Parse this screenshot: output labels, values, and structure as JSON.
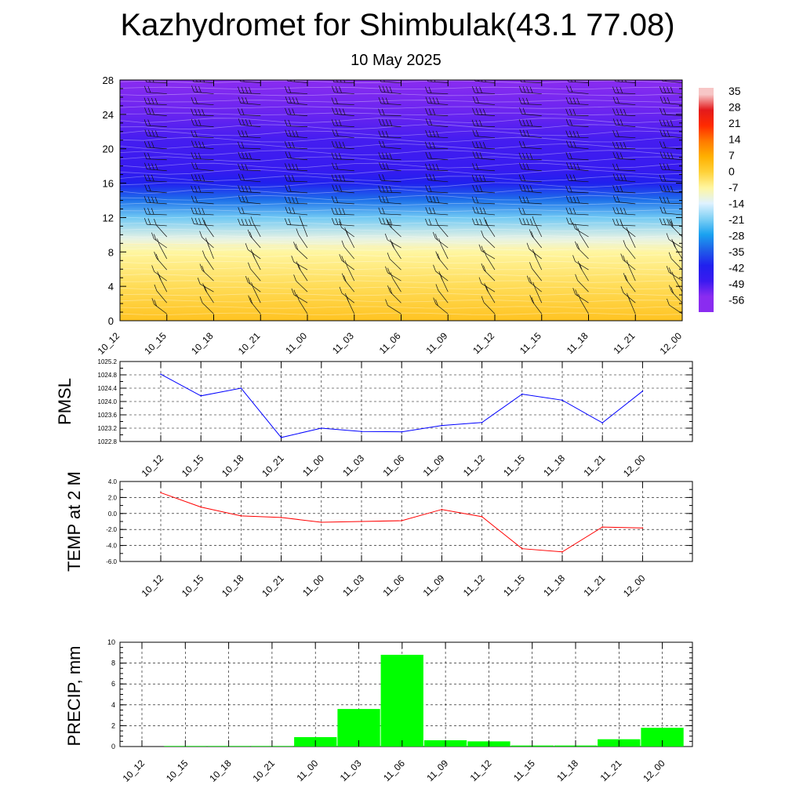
{
  "header": {
    "title": "Kazhydromet for Shimbulak(43.1 77.08)",
    "subtitle": "10 May 2025"
  },
  "chart_data": [
    {
      "type": "heatmap",
      "name": "temperature-cross-section",
      "x": [
        "10_12",
        "10_15",
        "10_18",
        "10_21",
        "11_00",
        "11_03",
        "11_06",
        "11_09",
        "11_12",
        "11_15",
        "11_18",
        "11_21",
        "12_00"
      ],
      "y_ticks": [
        0,
        4,
        8,
        12,
        16,
        20,
        24,
        28
      ],
      "ylim": [
        0,
        28
      ],
      "colorbar_ticks": [
        "35",
        "28",
        "21",
        "14",
        "7",
        "0",
        "-7",
        "-14",
        "-21",
        "-28",
        "-35",
        "-42",
        "-49",
        "-56"
      ],
      "colorbar_stops": [
        {
          "value": 35,
          "color": "#f7c6c6"
        },
        {
          "value": 28,
          "color": "#e31a1c"
        },
        {
          "value": 21,
          "color": "#ff2a00"
        },
        {
          "value": 14,
          "color": "#ff7a00"
        },
        {
          "value": 7,
          "color": "#ffb000"
        },
        {
          "value": 0,
          "color": "#ffd23a"
        },
        {
          "value": -7,
          "color": "#fff6a0"
        },
        {
          "value": -14,
          "color": "#dff2ff"
        },
        {
          "value": -21,
          "color": "#7fd0f5"
        },
        {
          "value": -28,
          "color": "#1aa2f0"
        },
        {
          "value": -35,
          "color": "#1f5fe8"
        },
        {
          "value": -42,
          "color": "#2020ee"
        },
        {
          "value": -49,
          "color": "#3a1af0"
        },
        {
          "value": -56,
          "color": "#8a2cf0"
        }
      ],
      "temperature_profile": [
        {
          "height": 0,
          "value": 3
        },
        {
          "height": 4,
          "value": -2
        },
        {
          "height": 8,
          "value": -7
        },
        {
          "height": 9.5,
          "value": -12
        },
        {
          "height": 12,
          "value": -22
        },
        {
          "height": 14,
          "value": -33
        },
        {
          "height": 16,
          "value": -42
        },
        {
          "height": 17.5,
          "value": -48
        },
        {
          "height": 21,
          "value": -50
        },
        {
          "height": 24,
          "value": -53
        },
        {
          "height": 28,
          "value": -56
        }
      ],
      "freezing_level": [
        8.9,
        8.9,
        8.8,
        8.8,
        8.7,
        8.7,
        8.6,
        8.5,
        8.5,
        8.4,
        8.3,
        8.2,
        8.0
      ]
    },
    {
      "type": "line",
      "name": "pmsl",
      "ylabel": "PMSL",
      "x": [
        "10_12",
        "10_15",
        "10_18",
        "10_21",
        "11_00",
        "11_03",
        "11_06",
        "11_09",
        "11_12",
        "11_15",
        "11_18",
        "11_21",
        "12_00"
      ],
      "values": [
        1024.82,
        1024.17,
        1024.4,
        1022.92,
        1023.2,
        1023.1,
        1023.09,
        1023.28,
        1023.37,
        1024.22,
        1024.04,
        1023.36,
        1024.31
      ],
      "ylim": [
        1022.8,
        1025.2
      ],
      "y_ticks": [
        "1022.8",
        "1023.2",
        "1023.6",
        "1024.0",
        "1024.4",
        "1024.8",
        "1025.2"
      ],
      "color": "#0000ff"
    },
    {
      "type": "line",
      "name": "temp-2m",
      "ylabel": "TEMP at 2 M",
      "x": [
        "10_12",
        "10_15",
        "10_18",
        "10_21",
        "11_00",
        "11_03",
        "11_06",
        "11_09",
        "11_12",
        "11_15",
        "11_18",
        "11_21",
        "12_00"
      ],
      "values": [
        2.6,
        0.8,
        -0.3,
        -0.5,
        -1.1,
        -1.0,
        -0.9,
        0.5,
        -0.4,
        -4.4,
        -4.8,
        -1.7,
        -1.8
      ],
      "ylim": [
        -6,
        4
      ],
      "y_ticks": [
        "-6.0",
        "-4.0",
        "-2.0",
        "0.0",
        "2.0",
        "4.0"
      ],
      "color": "#ff0000"
    },
    {
      "type": "bar",
      "name": "precip",
      "ylabel": "PRECIP, mm",
      "x": [
        "10_12",
        "10_15",
        "10_18",
        "10_21",
        "11_00",
        "11_03",
        "11_06",
        "11_09",
        "11_12",
        "11_15",
        "11_18",
        "11_21",
        "12_00"
      ],
      "values": [
        0,
        0.05,
        0.05,
        0.05,
        0.9,
        3.6,
        8.8,
        0.6,
        0.5,
        0.1,
        0.1,
        0.7,
        1.8
      ],
      "ylim": [
        0,
        10
      ],
      "y_ticks": [
        "0",
        "2",
        "4",
        "6",
        "8",
        "10"
      ],
      "color": "#00ff00"
    }
  ]
}
